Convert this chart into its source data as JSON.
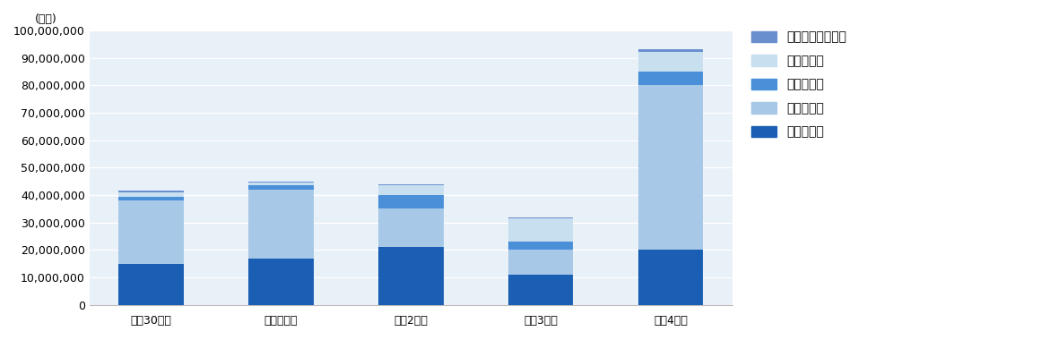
{
  "categories": [
    "平成30年度",
    "令和元年度",
    "令和2年度",
    "令和3年度",
    "令和4年度"
  ],
  "series": {
    "共同研究費": [
      15000000,
      17000000,
      21000000,
      11000000,
      20000000
    ],
    "受託研究費": [
      23000000,
      25000000,
      14000000,
      9000000,
      60000000
    ],
    "試験研究費": [
      1500000,
      1500000,
      5000000,
      3000000,
      5000000
    ],
    "奨学寄付金": [
      1500000,
      1000000,
      3500000,
      8500000,
      7000000
    ],
    "技術開示・指導料": [
      500000,
      500000,
      500000,
      500000,
      1000000
    ]
  },
  "colors": {
    "共同研究費": "#1a5fb4",
    "受託研究費": "#a8c8e8",
    "試験研究費": "#4a90d9",
    "奨学寄付金": "#c8dff0",
    "技術開示・指導料": "#6a8fcf"
  },
  "stack_order": [
    "共同研究費",
    "受託研究費",
    "試験研究費",
    "奨学寄付金",
    "技術開示・指導料"
  ],
  "legend_order": [
    "技術開示・指導料",
    "奨学寄付金",
    "試験研究費",
    "受託研究費",
    "共同研究費"
  ],
  "ylabel": "(万円)",
  "ytop_label": "10,000,000",
  "ylim": [
    0,
    100000000
  ],
  "ytick_interval": 10000000,
  "background_color": "#e8f0f8",
  "fig_bg_color": "#ffffff",
  "grid_color": "#ffffff",
  "bottom_spine_color": "#bbbbbb",
  "bar_width": 0.5,
  "tick_fontsize": 9,
  "legend_fontsize": 10
}
